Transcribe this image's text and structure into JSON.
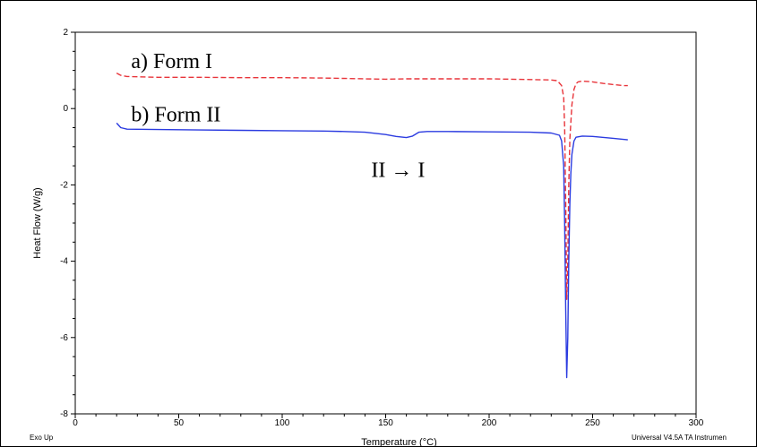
{
  "chart_data": {
    "type": "line",
    "xlabel": "Temperature (°C)",
    "ylabel": "Heat Flow (W/g)",
    "xlim": [
      0,
      300
    ],
    "ylim": [
      -8,
      2
    ],
    "xticks": [
      0,
      50,
      100,
      150,
      200,
      250,
      300
    ],
    "yticks": [
      -8,
      -6,
      -4,
      -2,
      0,
      2
    ],
    "grid": false,
    "series": [
      {
        "name": "a) Form I",
        "color": "#e8343a",
        "dash": "dashed",
        "x": [
          20,
          22,
          25,
          40,
          60,
          80,
          100,
          120,
          140,
          150,
          160,
          180,
          200,
          220,
          230,
          233,
          235,
          236,
          236.5,
          237,
          237.5,
          238,
          238.5,
          239,
          240,
          241,
          242,
          243,
          245,
          250,
          255,
          260,
          265,
          267
        ],
        "y": [
          0.93,
          0.87,
          0.84,
          0.82,
          0.82,
          0.81,
          0.81,
          0.8,
          0.78,
          0.77,
          0.78,
          0.78,
          0.78,
          0.76,
          0.75,
          0.73,
          0.6,
          0.3,
          -0.5,
          -2.5,
          -5.0,
          -4.0,
          -2.0,
          -0.8,
          0.1,
          0.5,
          0.65,
          0.7,
          0.72,
          0.7,
          0.66,
          0.63,
          0.6,
          0.6
        ]
      },
      {
        "name": "b) Form II",
        "color": "#2b3be0",
        "dash": "solid",
        "x": [
          20,
          22,
          25,
          40,
          60,
          80,
          100,
          120,
          130,
          140,
          150,
          155,
          160,
          163,
          166,
          170,
          180,
          200,
          220,
          230,
          234,
          235,
          236,
          236.5,
          237,
          237.5,
          238,
          238.5,
          239,
          239.5,
          240,
          241,
          242,
          245,
          250,
          260,
          267
        ],
        "y": [
          -0.38,
          -0.5,
          -0.54,
          -0.55,
          -0.56,
          -0.57,
          -0.58,
          -0.59,
          -0.6,
          -0.62,
          -0.68,
          -0.73,
          -0.76,
          -0.72,
          -0.62,
          -0.6,
          -0.6,
          -0.61,
          -0.62,
          -0.64,
          -0.7,
          -0.85,
          -1.5,
          -3.0,
          -5.3,
          -7.05,
          -6.0,
          -4.0,
          -2.5,
          -1.7,
          -1.2,
          -0.85,
          -0.75,
          -0.72,
          -0.73,
          -0.78,
          -0.82
        ]
      }
    ],
    "annotations": [
      {
        "text": "a) Form I",
        "x": 27,
        "y": 1.25
      },
      {
        "text": "b) Form II",
        "x": 27,
        "y": -0.15
      },
      {
        "text": "II → I",
        "x": 143,
        "y": -1.6
      }
    ],
    "footer_left": "Exo Up",
    "footer_right": "Universal V4.5A TA Instrumen"
  }
}
